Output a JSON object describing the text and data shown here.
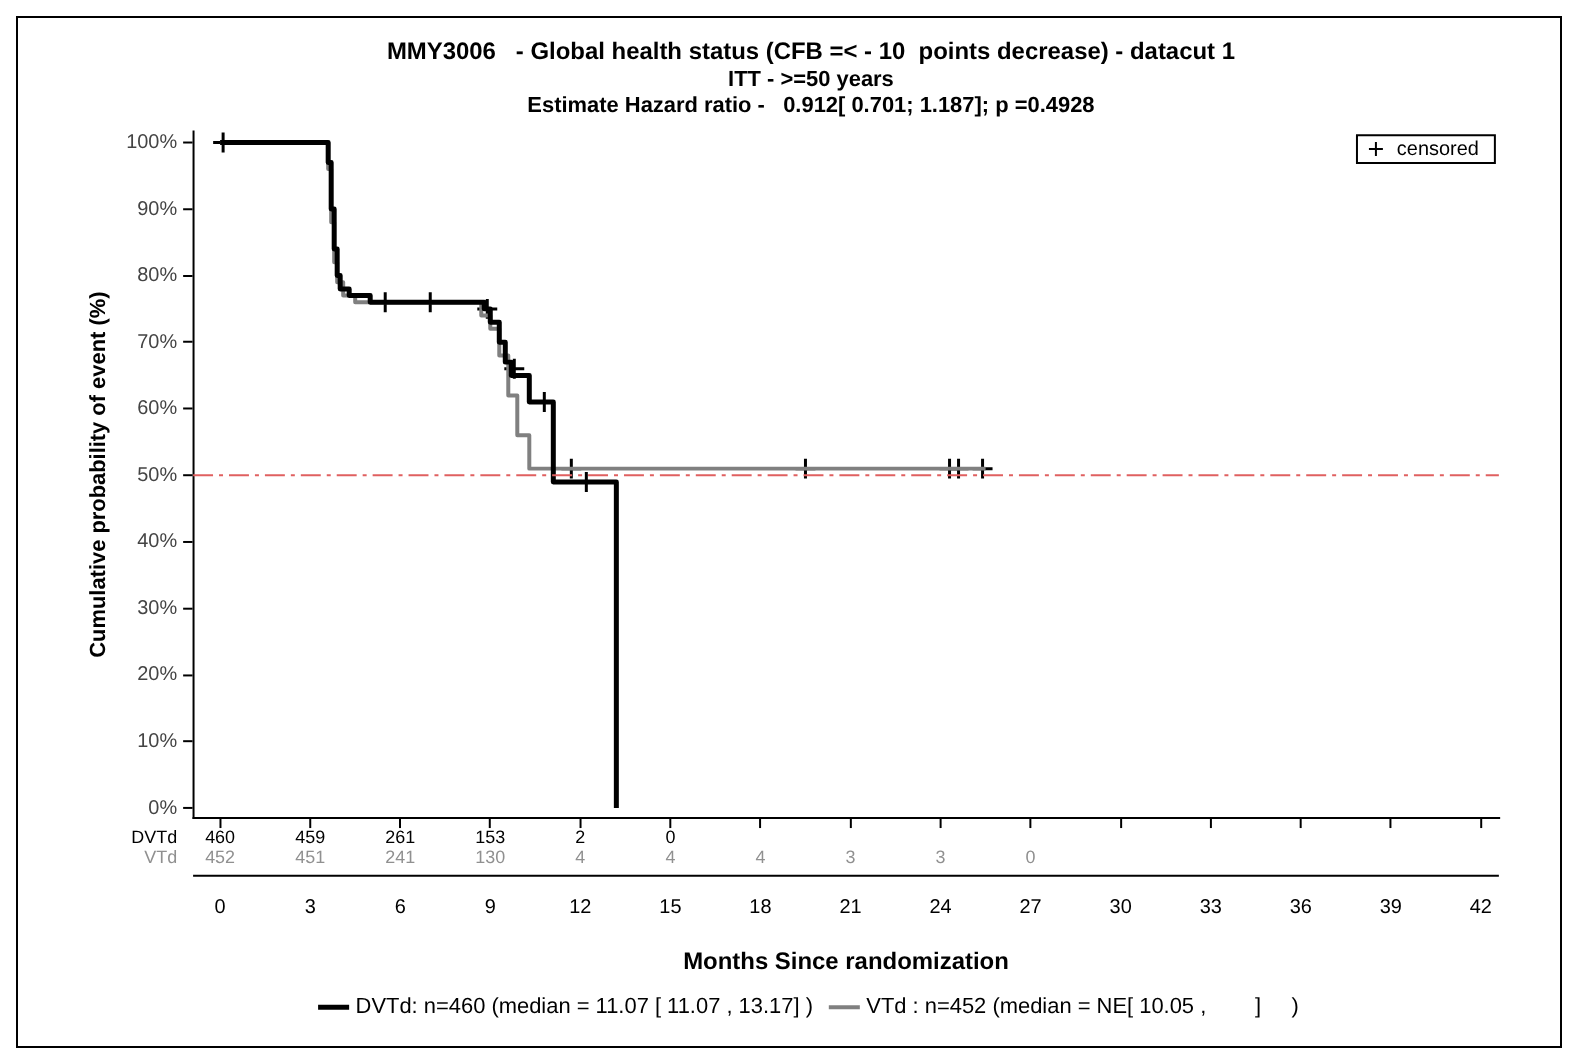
{
  "chart_data": {
    "type": "step",
    "title": "MMY3006   - Global health status (CFB =< - 10  points decrease) - datacut 1",
    "subtitle": "ITT - >=50 years\nEstimate Hazard ratio -   0.912[ 0.701; 1.187]; p =0.4928",
    "xlabel": "Months Since randomization",
    "ylabel": "Cumulative probability of event (%)",
    "xlim": [
      -0.9,
      42.6
    ],
    "xticks": [
      0,
      3,
      6,
      9,
      12,
      15,
      18,
      21,
      24,
      27,
      30,
      33,
      36,
      39,
      42
    ],
    "ylim": [
      -1.5,
      101.7
    ],
    "yticks": [
      {
        "value": 0,
        "label": "0%"
      },
      {
        "value": 10,
        "label": "10%"
      },
      {
        "value": 20,
        "label": "20%"
      },
      {
        "value": 30,
        "label": "30%"
      },
      {
        "value": 40,
        "label": "40%"
      },
      {
        "value": 50,
        "label": "50%"
      },
      {
        "value": 60,
        "label": "60%"
      },
      {
        "value": 70,
        "label": "70%"
      },
      {
        "value": 80,
        "label": "80%"
      },
      {
        "value": 90,
        "label": "90%"
      },
      {
        "value": 100,
        "label": "100%"
      }
    ],
    "grid": false,
    "legend": "bottom",
    "series": [
      {
        "name": "DVTd: n=460 (median = 11.07 [ 11.07 , 13.17] )",
        "color": "#000000",
        "x": [
          0,
          3.6,
          3.7,
          3.8,
          3.9,
          4.0,
          4.3,
          5,
          8.3,
          8.8,
          9.0,
          9.3,
          9.5,
          9.7,
          10.3,
          11.1,
          13.2
        ],
        "values": [
          100,
          97,
          90,
          84,
          80,
          78,
          77,
          76,
          76,
          75,
          73,
          70,
          67,
          65,
          61,
          49,
          0
        ]
      },
      {
        "name": "VTd : n=452 (median = NE[ 10.05 ,        ]     )",
        "color": "#808080",
        "x": [
          0,
          3.6,
          3.7,
          3.8,
          3.9,
          4.1,
          4.5,
          8.3,
          8.7,
          9.0,
          9.3,
          9.6,
          9.9,
          10.3,
          25.5
        ],
        "values": [
          100,
          96,
          88,
          82,
          79,
          77,
          76,
          76,
          74,
          72,
          68,
          62,
          56,
          51,
          51
        ]
      },
      {
        "name": "censored",
        "type": "scatter",
        "marker": "cross",
        "color": "#000000",
        "x": [
          0.1,
          5.5,
          7,
          8.9,
          9.8,
          10.8,
          12.2,
          11.7,
          19.5,
          24.3,
          24.6,
          25.4
        ],
        "values": [
          100,
          76,
          76,
          75,
          66,
          61,
          49,
          51,
          51,
          51,
          51,
          51
        ]
      }
    ],
    "ref_lines": [
      {
        "axis": "y",
        "value": 50,
        "color": "#e06060",
        "line_style": "dashed"
      }
    ],
    "annotations": [
      "DVTd 460 459 261 153 2 0",
      "VTd 452 451 241 130 4 4 4 3 3 0"
    ]
  }
}
